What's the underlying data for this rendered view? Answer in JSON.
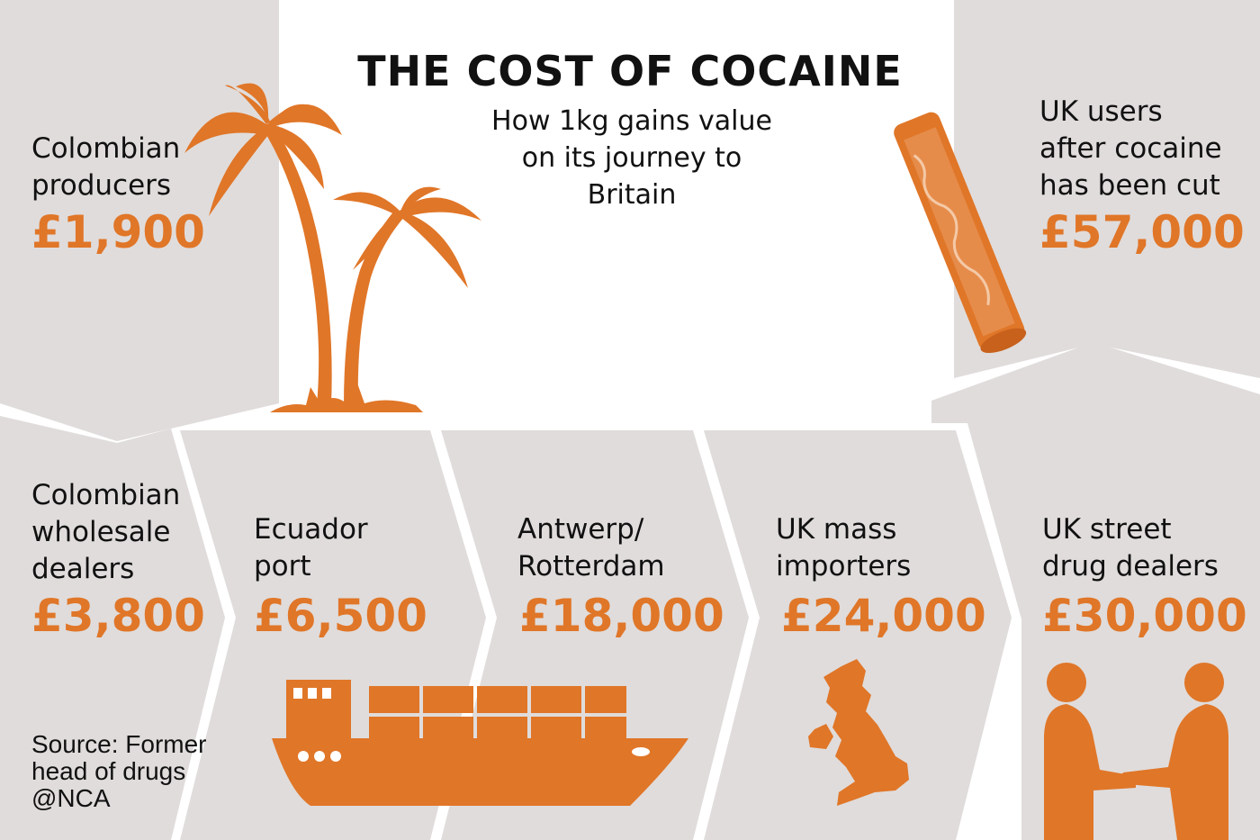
{
  "title": "THE COST OF COCAINE",
  "subtitle": "How 1kg gains value\non its journey to\nBritain",
  "colors": {
    "accent": "#e07628",
    "panel": "#e0dcdb",
    "background": "#ffffff",
    "text": "#111111"
  },
  "stages": [
    {
      "label": "Colombian\nproducers",
      "value": "£1,900"
    },
    {
      "label": "Colombian\nwholesale\ndealers",
      "value": "£3,800"
    },
    {
      "label": "Ecuador\nport",
      "value": "£6,500"
    },
    {
      "label": "Antwerp/\nRotterdam",
      "value": "£18,000"
    },
    {
      "label": "UK mass\nimporters",
      "value": "£24,000"
    },
    {
      "label": "UK street\ndrug dealers",
      "value": "£30,000"
    },
    {
      "label": "UK users\nafter cocaine\nhas been cut",
      "value": "£57,000"
    }
  ],
  "source": "Source: Former\nhead of drugs\n@NCA",
  "icons": [
    "palm-tree-icon",
    "rolled-banknote-icon",
    "cargo-ship-icon",
    "uk-map-icon",
    "handshake-icon"
  ]
}
